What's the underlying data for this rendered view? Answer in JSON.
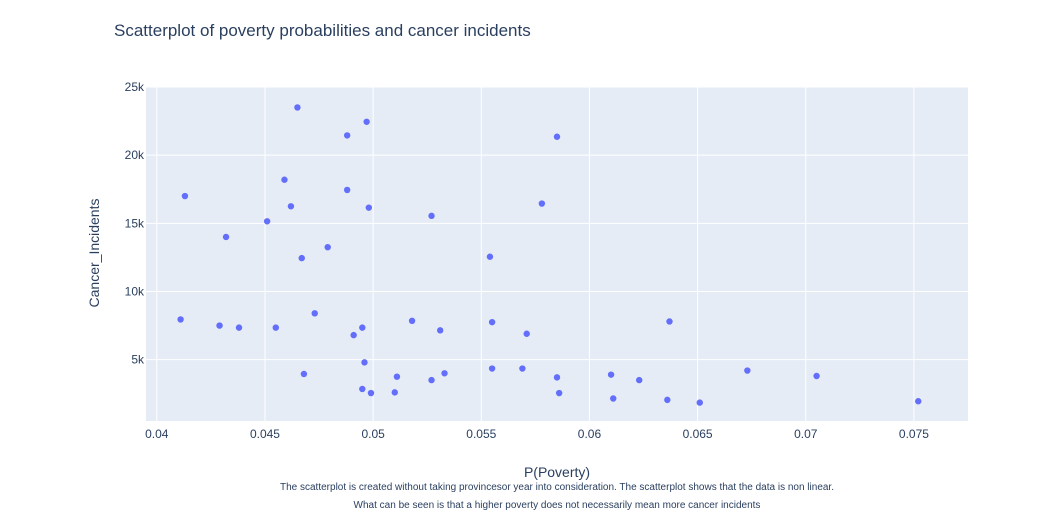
{
  "chart_data": {
    "type": "scatter",
    "title": "Scatterplot of poverty probabilities and cancer incidents",
    "xlabel": "P(Poverty)",
    "ylabel": "Cancer_Incidents",
    "xlim": [
      0.0395,
      0.0775
    ],
    "ylim": [
      500,
      25000
    ],
    "x_ticks": [
      0.04,
      0.045,
      0.05,
      0.055,
      0.06,
      0.065,
      0.07,
      0.075
    ],
    "x_tick_labels": [
      "0.04",
      "0.045",
      "0.05",
      "0.055",
      "0.06",
      "0.065",
      "0.07",
      "0.075"
    ],
    "y_ticks": [
      5000,
      10000,
      15000,
      20000,
      25000
    ],
    "y_tick_labels": [
      "5k",
      "10k",
      "15k",
      "20k",
      "25k"
    ],
    "grid": true,
    "marker_color": "#636efa",
    "plot_bgcolor": "#e5ecf6",
    "points": [
      {
        "x": 0.0411,
        "y": 7950
      },
      {
        "x": 0.0413,
        "y": 17000
      },
      {
        "x": 0.0429,
        "y": 7500
      },
      {
        "x": 0.0432,
        "y": 14000
      },
      {
        "x": 0.0438,
        "y": 7350
      },
      {
        "x": 0.0451,
        "y": 15150
      },
      {
        "x": 0.0455,
        "y": 7350
      },
      {
        "x": 0.0459,
        "y": 18200
      },
      {
        "x": 0.0462,
        "y": 16250
      },
      {
        "x": 0.0465,
        "y": 23500
      },
      {
        "x": 0.0467,
        "y": 12450
      },
      {
        "x": 0.0468,
        "y": 3950
      },
      {
        "x": 0.0473,
        "y": 8400
      },
      {
        "x": 0.0479,
        "y": 13250
      },
      {
        "x": 0.0488,
        "y": 17450
      },
      {
        "x": 0.0488,
        "y": 21450
      },
      {
        "x": 0.0491,
        "y": 6800
      },
      {
        "x": 0.0495,
        "y": 7350
      },
      {
        "x": 0.0495,
        "y": 2850
      },
      {
        "x": 0.0496,
        "y": 4800
      },
      {
        "x": 0.0497,
        "y": 22450
      },
      {
        "x": 0.0498,
        "y": 16150
      },
      {
        "x": 0.0499,
        "y": 2550
      },
      {
        "x": 0.051,
        "y": 2600
      },
      {
        "x": 0.0511,
        "y": 3750
      },
      {
        "x": 0.0518,
        "y": 7850
      },
      {
        "x": 0.0527,
        "y": 3500
      },
      {
        "x": 0.0527,
        "y": 15550
      },
      {
        "x": 0.0531,
        "y": 7150
      },
      {
        "x": 0.0533,
        "y": 4000
      },
      {
        "x": 0.0554,
        "y": 12550
      },
      {
        "x": 0.0555,
        "y": 7750
      },
      {
        "x": 0.0555,
        "y": 4350
      },
      {
        "x": 0.0569,
        "y": 4350
      },
      {
        "x": 0.0571,
        "y": 6900
      },
      {
        "x": 0.0578,
        "y": 16450
      },
      {
        "x": 0.0585,
        "y": 21350
      },
      {
        "x": 0.0585,
        "y": 3700
      },
      {
        "x": 0.0586,
        "y": 2550
      },
      {
        "x": 0.061,
        "y": 3900
      },
      {
        "x": 0.0611,
        "y": 2150
      },
      {
        "x": 0.0623,
        "y": 3500
      },
      {
        "x": 0.0636,
        "y": 2050
      },
      {
        "x": 0.0637,
        "y": 7800
      },
      {
        "x": 0.0651,
        "y": 1850
      },
      {
        "x": 0.0673,
        "y": 4200
      },
      {
        "x": 0.0705,
        "y": 3800
      },
      {
        "x": 0.0752,
        "y": 1950
      }
    ],
    "annotations": [
      "The scatterplot is created without taking provincesor year into consideration. The scatterplot shows that the data is non linear.",
      "What can be seen is that a higher poverty does not necessarily mean more cancer incidents"
    ]
  }
}
